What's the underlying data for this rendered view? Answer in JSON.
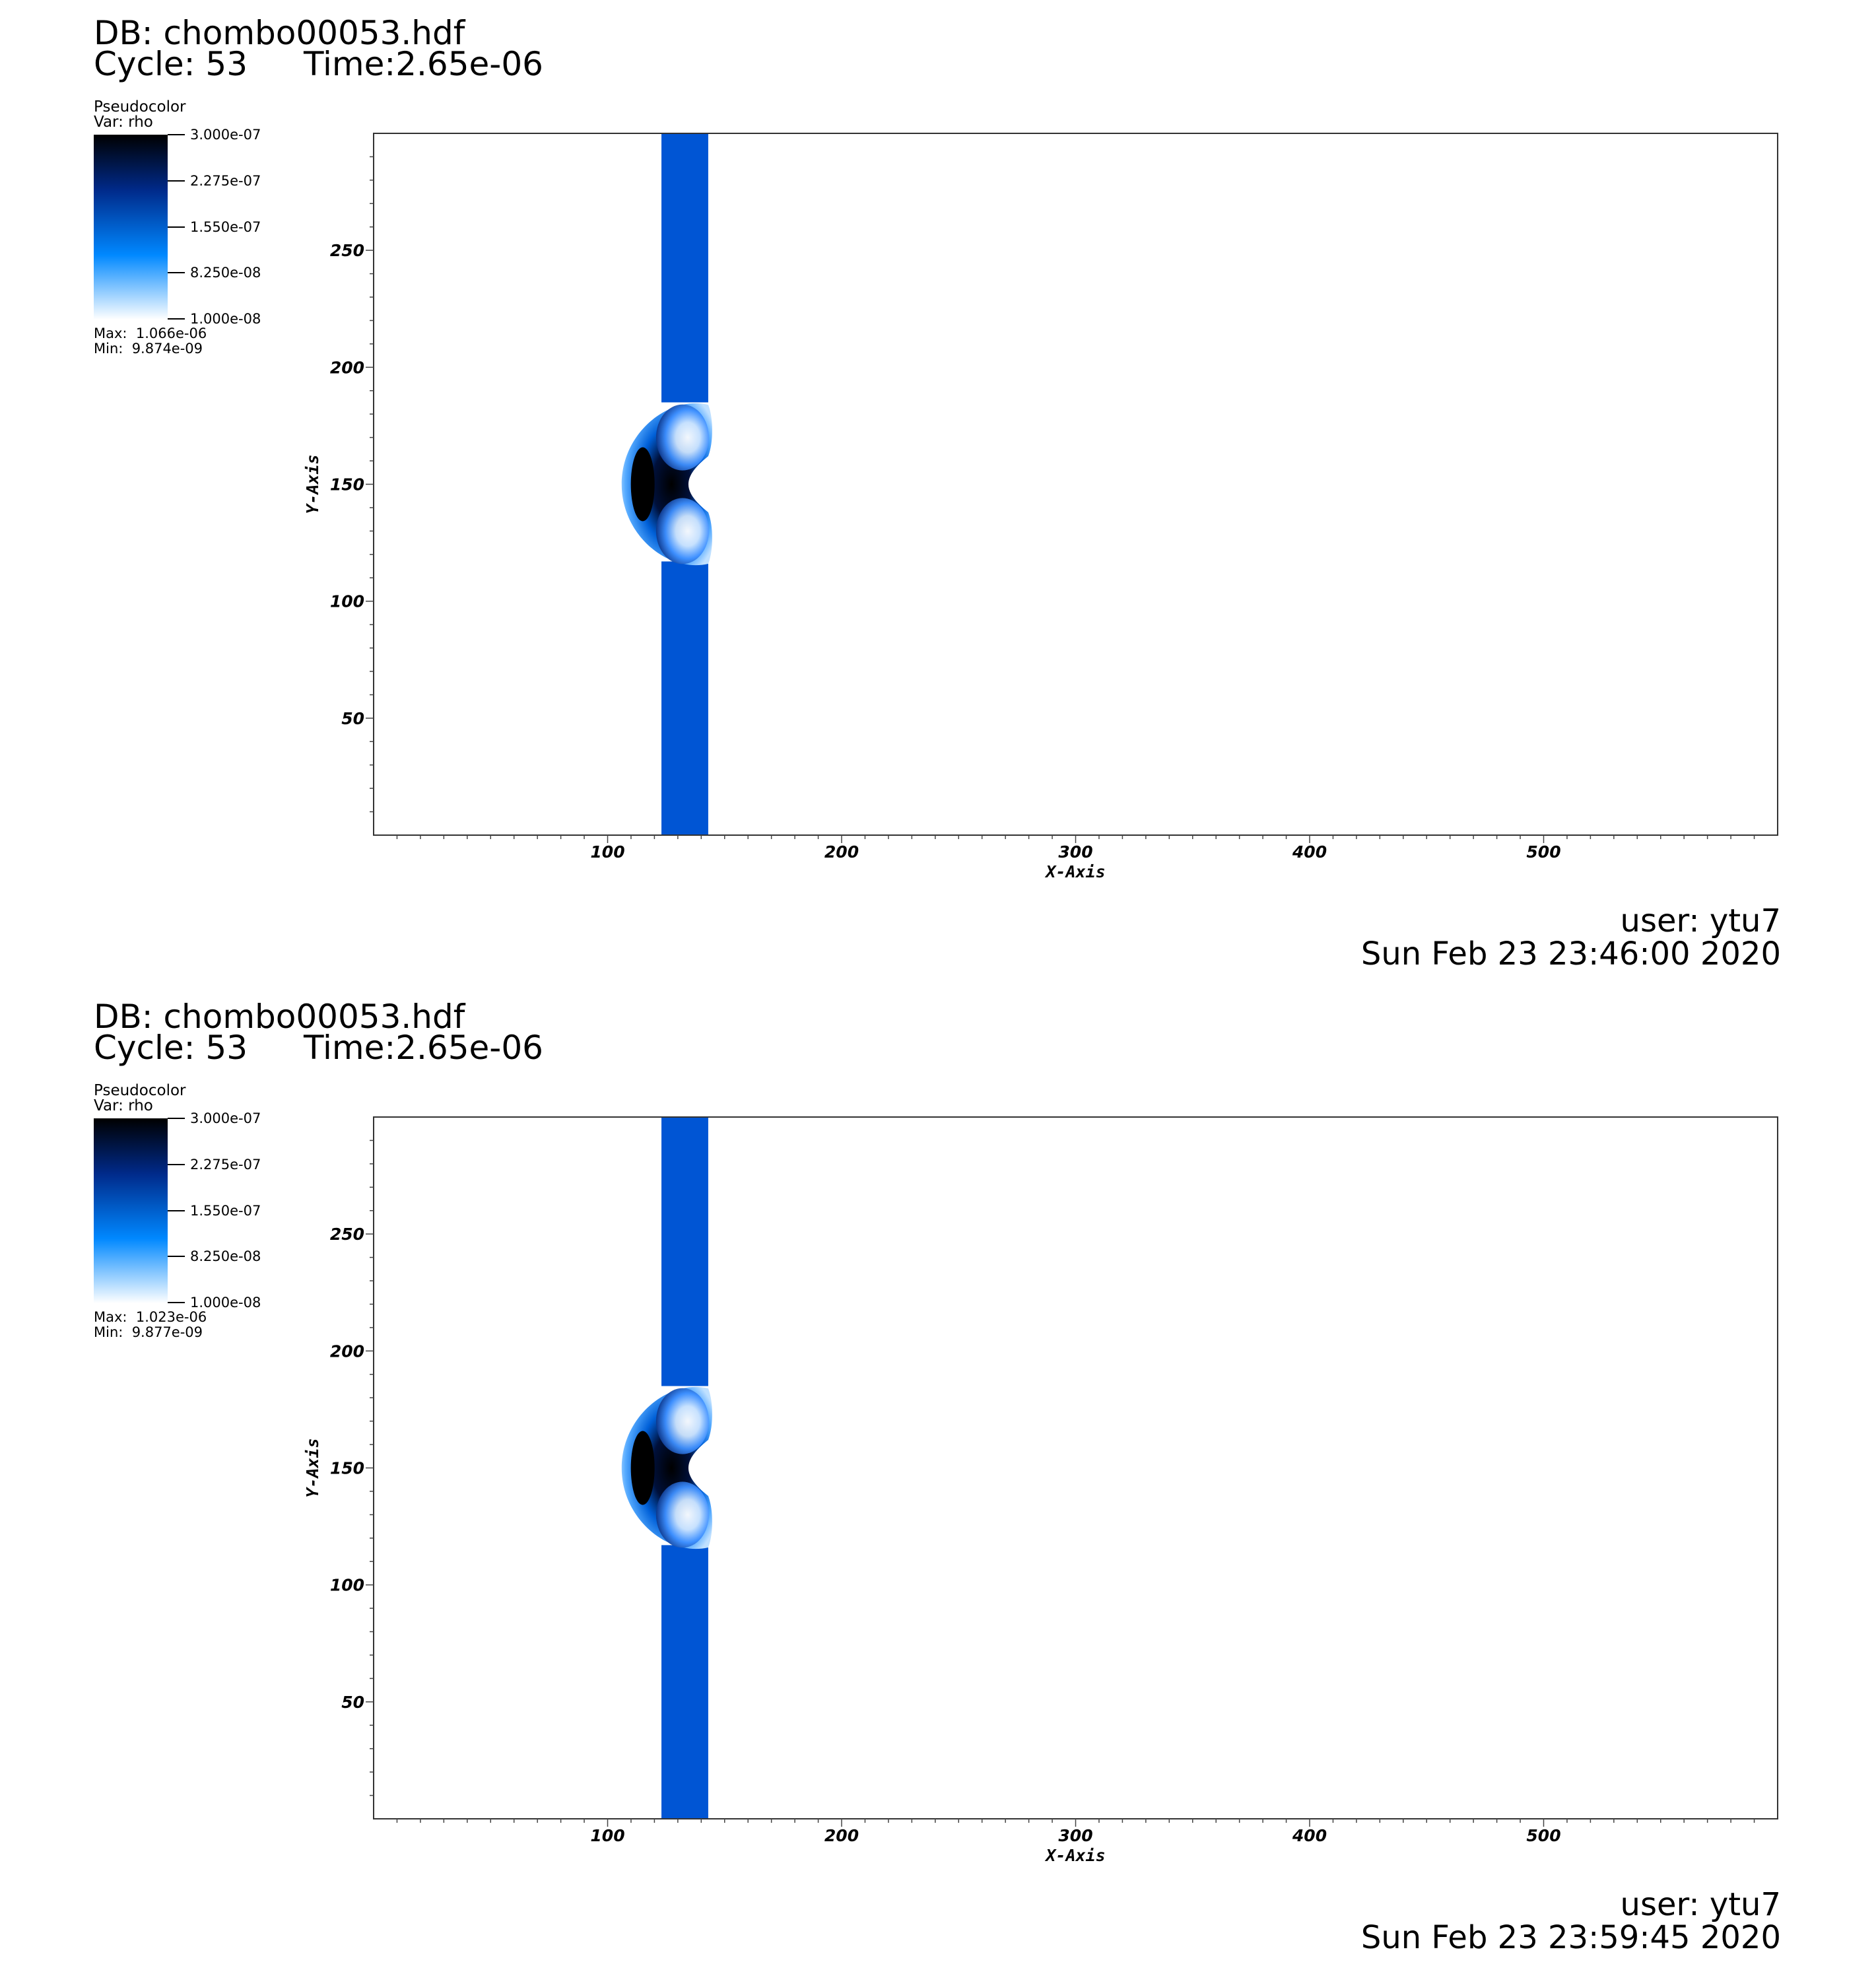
{
  "panels": [
    {
      "db": "DB: chombo00053.hdf",
      "cycle": "Cycle: 53",
      "time": "Time:2.65e-06",
      "legend": {
        "title": "Pseudocolor",
        "var": "Var: rho",
        "ticks": [
          "3.000e-07",
          "2.275e-07",
          "1.550e-07",
          "8.250e-08",
          "1.000e-08"
        ],
        "max": "Max:  1.066e-06",
        "min": "Min:  9.874e-09"
      },
      "user": "user: ytu7",
      "date": "Sun Feb 23 23:46:00 2020"
    },
    {
      "db": "DB: chombo00053.hdf",
      "cycle": "Cycle: 53",
      "time": "Time:2.65e-06",
      "legend": {
        "title": "Pseudocolor",
        "var": "Var: rho",
        "ticks": [
          "3.000e-07",
          "2.275e-07",
          "1.550e-07",
          "8.250e-08",
          "1.000e-08"
        ],
        "max": "Max:  1.023e-06",
        "min": "Min:  9.877e-09"
      },
      "user": "user: ytu7",
      "date": "Sun Feb 23 23:59:45 2020"
    }
  ],
  "chart_data": [
    {
      "type": "heatmap",
      "xlabel": "X-Axis",
      "ylabel": "Y-Axis",
      "xlim": [
        0,
        600
      ],
      "ylim": [
        0,
        300
      ],
      "xticks": [
        100,
        200,
        300,
        400,
        500
      ],
      "yticks": [
        50,
        100,
        150,
        200,
        250
      ],
      "colormap": [
        "#ffffff",
        "#0088ff",
        "#002a8a",
        "#000000"
      ],
      "structures": {
        "band": {
          "x": [
            123,
            143
          ],
          "y": [
            0,
            300
          ],
          "color": "#0055d4"
        },
        "bow_center": [
          122,
          150
        ]
      }
    },
    {
      "type": "heatmap",
      "xlabel": "X-Axis",
      "ylabel": "Y-Axis",
      "xlim": [
        0,
        600
      ],
      "ylim": [
        0,
        300
      ],
      "xticks": [
        100,
        200,
        300,
        400,
        500
      ],
      "yticks": [
        50,
        100,
        150,
        200,
        250
      ],
      "colormap": [
        "#ffffff",
        "#0088ff",
        "#002a8a",
        "#000000"
      ],
      "structures": {
        "band": {
          "x": [
            123,
            143
          ],
          "y": [
            0,
            300
          ],
          "color": "#0055d4"
        },
        "bow_center": [
          122,
          150
        ]
      }
    }
  ]
}
